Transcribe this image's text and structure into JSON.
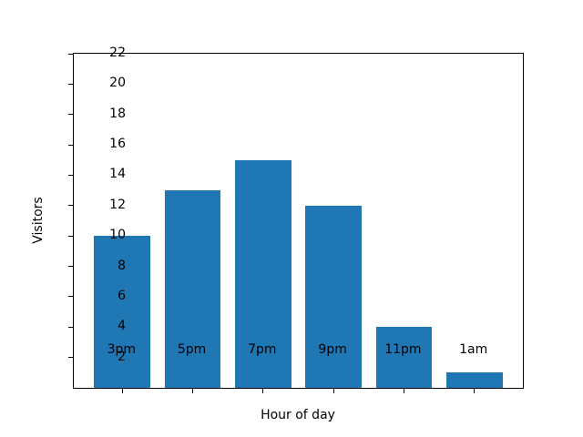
{
  "chart_data": {
    "type": "bar",
    "categories": [
      "3pm",
      "5pm",
      "7pm",
      "9pm",
      "11pm",
      "1am"
    ],
    "values": [
      10,
      13,
      15,
      12,
      4,
      1
    ],
    "title": "",
    "xlabel": "Hour of day",
    "ylabel": "Visitors",
    "ylim": [
      0,
      22
    ],
    "yticks": [
      2,
      4,
      6,
      8,
      10,
      12,
      14,
      16,
      18,
      20,
      22
    ],
    "bar_color": "#1f77b4",
    "background_color": "#ffffff",
    "axis_color": "#000000",
    "grid": false,
    "legend": null,
    "bar_width_fraction": 0.8,
    "x_axis_span_units": 6.38,
    "x_axis_offset_units": 0.69
  }
}
